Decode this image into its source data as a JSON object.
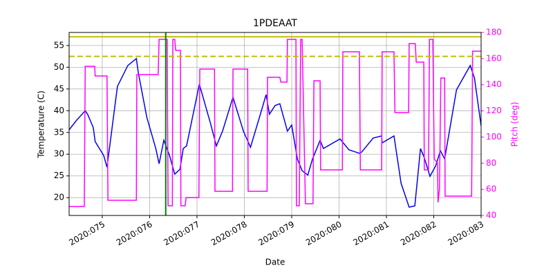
{
  "chart_data": {
    "type": "line",
    "title": "1PDEAAT",
    "xlabel": "Date",
    "ylabel": "Temperature (C)",
    "y2label": "Pitch (deg)",
    "y2color": "#ff00ff",
    "grid": true,
    "xlim": [
      74.3,
      83.0
    ],
    "xticks": [
      {
        "value": 75,
        "label": "2020:075"
      },
      {
        "value": 76,
        "label": "2020:076"
      },
      {
        "value": 77,
        "label": "2020:077"
      },
      {
        "value": 78,
        "label": "2020:078"
      },
      {
        "value": 79,
        "label": "2020:079"
      },
      {
        "value": 80,
        "label": "2020:080"
      },
      {
        "value": 81,
        "label": "2020:081"
      },
      {
        "value": 82,
        "label": "2020:082"
      },
      {
        "value": 83,
        "label": "2020:083"
      }
    ],
    "ylim": [
      15.9,
      58.0
    ],
    "yticks": [
      20,
      25,
      30,
      35,
      40,
      45,
      50,
      55
    ],
    "y2lim": [
      40,
      180
    ],
    "y2ticks": [
      40,
      60,
      80,
      100,
      120,
      140,
      160,
      180
    ],
    "hlines": [
      {
        "value": 57,
        "color": "#bfbf00",
        "dashed": false
      },
      {
        "value": 52.5,
        "color": "#bfbf00",
        "dashed": true
      }
    ],
    "vlines": [
      {
        "value": 76.34,
        "color": "#008000"
      }
    ],
    "series": [
      {
        "color": "#0000ee",
        "x": [
          74.3,
          74.45,
          74.64,
          74.69,
          74.81,
          74.85,
          75.03,
          75.1,
          75.32,
          75.54,
          75.72,
          75.76,
          75.94,
          76.13,
          76.2,
          76.3,
          76.42,
          76.53,
          76.64,
          76.71,
          76.78,
          77.05,
          77.29,
          77.41,
          77.54,
          77.76,
          77.98,
          78.13,
          78.32,
          78.46,
          78.53,
          78.65,
          78.75,
          78.91,
          79.0,
          79.12,
          79.22,
          79.34,
          79.44,
          79.6,
          79.67,
          80.02,
          80.21,
          80.43,
          80.48,
          80.72,
          80.9,
          80.91,
          81.16,
          81.31,
          81.48,
          81.6,
          81.72,
          81.8,
          81.92,
          82.04,
          82.14,
          82.23,
          82.48,
          82.77,
          82.86,
          83.0
        ],
        "values": [
          35.6,
          37.7,
          40.0,
          39.2,
          36.1,
          32.9,
          29.7,
          27.0,
          45.6,
          50.4,
          52.0,
          48.8,
          38.5,
          31.3,
          27.8,
          33.2,
          29.7,
          25.4,
          26.5,
          31.3,
          31.9,
          46.1,
          36.9,
          31.9,
          35.3,
          43.1,
          35.3,
          31.6,
          38.5,
          43.7,
          39.2,
          41.2,
          41.6,
          35.3,
          36.7,
          28.9,
          26.2,
          25.2,
          28.9,
          33.2,
          31.3,
          33.5,
          31.0,
          30.2,
          30.5,
          33.7,
          34.2,
          32.6,
          34.2,
          23.3,
          17.8,
          18.1,
          31.3,
          29.2,
          24.9,
          27.3,
          30.8,
          28.9,
          44.8,
          50.4,
          47.5,
          36.5
        ]
      },
      {
        "color": "#ff00ff",
        "axis": "y2",
        "x": [
          74.3,
          74.62,
          74.64,
          74.84,
          74.85,
          75.1,
          75.12,
          75.72,
          75.73,
          76.18,
          76.2,
          76.37,
          76.39,
          76.48,
          76.49,
          76.53,
          76.55,
          76.65,
          76.66,
          76.75,
          76.77,
          77.04,
          77.06,
          77.37,
          77.38,
          77.75,
          77.76,
          78.07,
          78.08,
          78.48,
          78.49,
          78.75,
          78.77,
          78.9,
          78.91,
          79.09,
          79.1,
          79.16,
          79.19,
          79.22,
          79.29,
          79.45,
          79.47,
          79.6,
          79.61,
          80.07,
          80.08,
          80.43,
          80.45,
          80.9,
          80.91,
          81.16,
          81.18,
          81.47,
          81.48,
          81.61,
          81.63,
          81.79,
          81.8,
          81.89,
          81.91,
          81.98,
          82.01,
          82.08,
          82.09,
          82.12,
          82.15,
          82.23,
          82.24,
          82.8,
          82.82,
          83.0
        ],
        "values": [
          46.9,
          46.9,
          154.1,
          154.1,
          146.7,
          146.7,
          51.6,
          51.6,
          147.8,
          147.8,
          174.7,
          174.7,
          47.4,
          47.4,
          174.7,
          174.7,
          166.3,
          166.3,
          47.4,
          47.4,
          53.7,
          53.7,
          152.0,
          152.0,
          58.5,
          58.5,
          152.0,
          152.0,
          58.5,
          58.5,
          145.7,
          145.7,
          142.0,
          142.0,
          174.7,
          174.7,
          47.4,
          47.4,
          174.7,
          174.7,
          49.0,
          49.0,
          143.0,
          143.0,
          74.9,
          74.9,
          165.2,
          165.2,
          74.9,
          74.9,
          165.2,
          165.2,
          118.7,
          118.7,
          171.5,
          171.5,
          157.3,
          157.3,
          74.9,
          74.9,
          174.7,
          174.7,
          83.3,
          80.0,
          50.0,
          60.0,
          145.1,
          145.1,
          54.8,
          54.8,
          165.7,
          165.7
        ]
      }
    ]
  }
}
